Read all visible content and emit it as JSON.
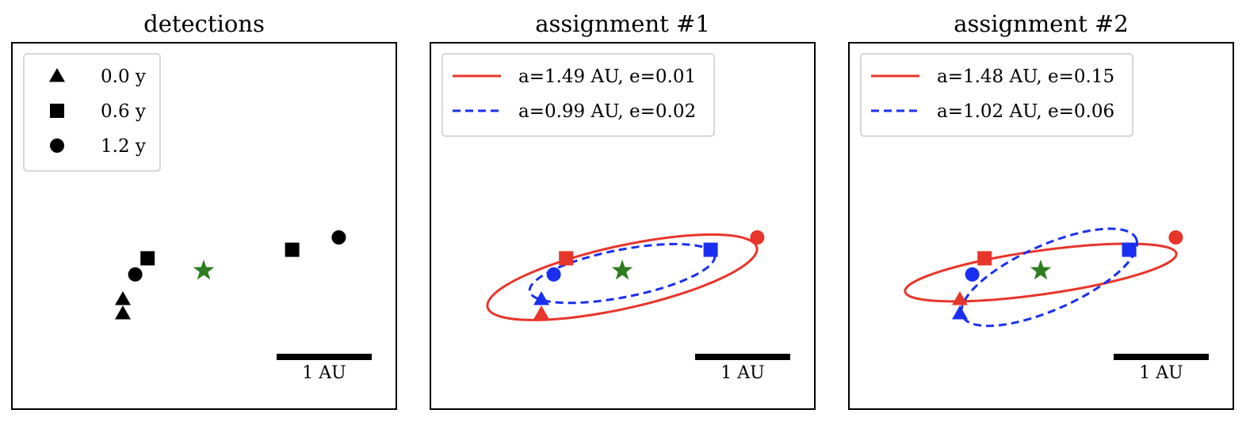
{
  "chart_data": [
    {
      "type": "scatter",
      "title": "detections",
      "legend": [
        {
          "marker": "triangle",
          "label": "0.0 y"
        },
        {
          "marker": "square",
          "label": "0.6 y"
        },
        {
          "marker": "circle",
          "label": "1.2 y"
        }
      ],
      "legend_position": "upper-left",
      "scale_bar": {
        "label": "1 AU",
        "length_au": 1
      },
      "star": {
        "x": 0,
        "y": 0,
        "color": "#2e7d1f"
      },
      "points": [
        {
          "x": -0.85,
          "y": -0.3,
          "marker": "triangle",
          "color": "#000000"
        },
        {
          "x": -0.85,
          "y": -0.45,
          "marker": "triangle",
          "color": "#000000"
        },
        {
          "x": -0.59,
          "y": 0.13,
          "marker": "square",
          "color": "#000000"
        },
        {
          "x": 0.93,
          "y": 0.22,
          "marker": "square",
          "color": "#000000"
        },
        {
          "x": -0.72,
          "y": -0.04,
          "marker": "circle",
          "color": "#000000"
        },
        {
          "x": 1.42,
          "y": 0.35,
          "marker": "circle",
          "color": "#000000"
        }
      ],
      "orbits": []
    },
    {
      "type": "scatter",
      "title": "assignment #1",
      "legend": [
        {
          "style": "solid",
          "color": "#e8352a",
          "label": "a=1.49 AU, e=0.01"
        },
        {
          "style": "dashed",
          "color": "#1a2ff0",
          "label": "a=0.99 AU, e=0.02"
        }
      ],
      "legend_position": "upper-left",
      "scale_bar": {
        "label": "1 AU",
        "length_au": 1
      },
      "star": {
        "x": 0,
        "y": 0,
        "color": "#2e7d1f"
      },
      "points": [
        {
          "x": -0.85,
          "y": -0.45,
          "marker": "triangle",
          "color": "#e8352a"
        },
        {
          "x": -0.59,
          "y": 0.13,
          "marker": "square",
          "color": "#e8352a"
        },
        {
          "x": 1.42,
          "y": 0.35,
          "marker": "circle",
          "color": "#e8352a"
        },
        {
          "x": -0.85,
          "y": -0.3,
          "marker": "triangle",
          "color": "#1a2ff0"
        },
        {
          "x": 0.93,
          "y": 0.22,
          "marker": "square",
          "color": "#1a2ff0"
        },
        {
          "x": -0.72,
          "y": -0.04,
          "marker": "circle",
          "color": "#1a2ff0"
        }
      ],
      "orbits": [
        {
          "color": "#e8352a",
          "style": "solid",
          "cx": 0.0,
          "cy": -0.07,
          "rx": 1.45,
          "ry": 0.33,
          "angle_deg": 12.5
        },
        {
          "color": "#1a2ff0",
          "style": "dashed",
          "cx": 0.0,
          "cy": -0.03,
          "rx": 0.99,
          "ry": 0.25,
          "angle_deg": 11
        }
      ]
    },
    {
      "type": "scatter",
      "title": "assignment #2",
      "legend": [
        {
          "style": "solid",
          "color": "#e8352a",
          "label": "a=1.48 AU, e=0.15"
        },
        {
          "style": "dashed",
          "color": "#1a2ff0",
          "label": "a=1.02 AU, e=0.06"
        }
      ],
      "legend_position": "upper-left",
      "scale_bar": {
        "label": "1 AU",
        "length_au": 1
      },
      "star": {
        "x": 0,
        "y": 0,
        "color": "#2e7d1f"
      },
      "points": [
        {
          "x": -0.85,
          "y": -0.3,
          "marker": "triangle",
          "color": "#e8352a"
        },
        {
          "x": -0.59,
          "y": 0.13,
          "marker": "square",
          "color": "#e8352a"
        },
        {
          "x": 1.42,
          "y": 0.35,
          "marker": "circle",
          "color": "#e8352a"
        },
        {
          "x": -0.85,
          "y": -0.45,
          "marker": "triangle",
          "color": "#1a2ff0"
        },
        {
          "x": 0.93,
          "y": 0.22,
          "marker": "square",
          "color": "#1a2ff0"
        },
        {
          "x": -0.72,
          "y": -0.04,
          "marker": "circle",
          "color": "#1a2ff0"
        }
      ],
      "orbits": [
        {
          "color": "#e8352a",
          "style": "solid",
          "cx": 0.0,
          "cy": -0.02,
          "rx": 1.44,
          "ry": 0.23,
          "angle_deg": 8
        },
        {
          "color": "#1a2ff0",
          "style": "dashed",
          "cx": 0.09,
          "cy": -0.07,
          "rx": 1.0,
          "ry": 0.34,
          "angle_deg": 24
        }
      ]
    }
  ]
}
